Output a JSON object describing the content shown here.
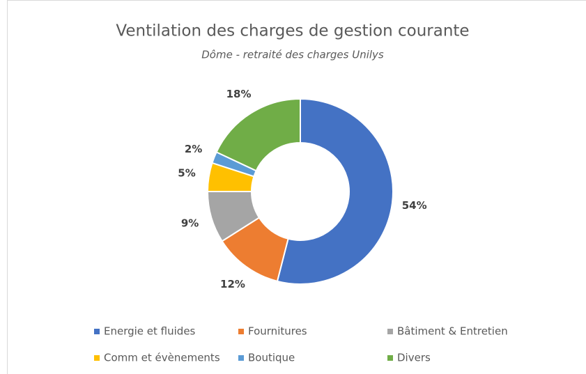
{
  "chart_data": {
    "type": "donut",
    "title": "Ventilation des charges de gestion courante",
    "subtitle": "Dôme - retraité des charges Unilys",
    "categories": [
      "Energie et fluides",
      "Fournitures",
      "Bâtiment & Entretien",
      "Comm et évènements",
      "Boutique",
      "Divers"
    ],
    "values": [
      54,
      12,
      9,
      5,
      2,
      18
    ],
    "value_labels": [
      "54%",
      "12%",
      "9%",
      "5%",
      "2%",
      "18%"
    ],
    "colors": [
      "#4472c4",
      "#ed7d31",
      "#a5a5a5",
      "#ffc000",
      "#5b9bd5",
      "#70ad47"
    ]
  }
}
